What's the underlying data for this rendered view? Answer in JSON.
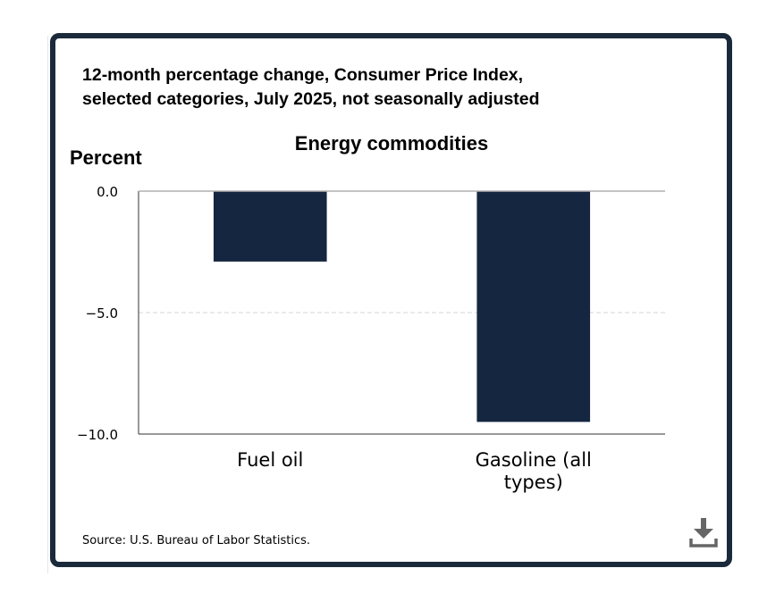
{
  "chart_data": {
    "type": "bar",
    "title": "12-month percentage change, Consumer Price Index,\nselected categories, July 2025, not seasonally adjusted",
    "subtitle": "Energy commodities",
    "ylabel": "Percent",
    "xlabel": "",
    "categories": [
      "Fuel oil",
      "Gasoline (all\ntypes)"
    ],
    "values": [
      -2.9,
      -9.5
    ],
    "ylim": [
      -10.0,
      0.0
    ],
    "yticks": [
      0.0,
      -5.0,
      -10.0
    ],
    "ytick_labels": [
      "0.0",
      "−5.0",
      "−10.0"
    ],
    "grid": true,
    "bar_color": "#142640",
    "source": "Source: U.S. Bureau of Labor Statistics."
  },
  "icons": {
    "download": "download-icon"
  }
}
